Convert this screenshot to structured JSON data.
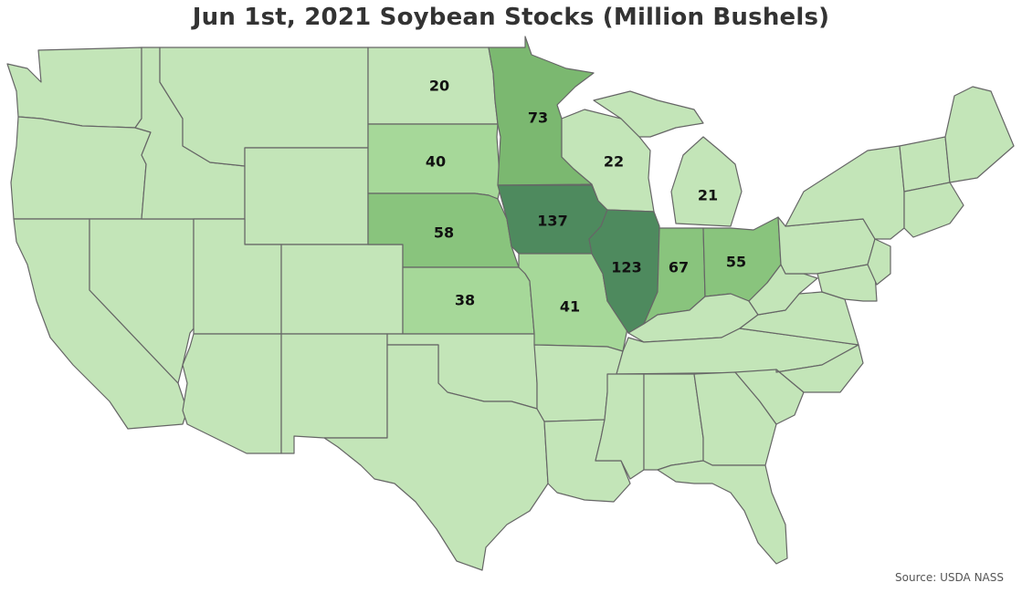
{
  "title": "Jun 1st, 2021 Soybean Stocks (Million Bushels)",
  "source": "Source: USDA NASS",
  "colors": {
    "base": "#c3e5b8",
    "low": "#a6d899",
    "mid": "#89c47d",
    "high": "#7bb870",
    "top": "#4e8a5e",
    "outline": "#666666"
  },
  "states": {
    "ND": "20",
    "SD": "40",
    "NE": "58",
    "KS": "38",
    "MN": "73",
    "IA": "137",
    "MO": "41",
    "WI": "22",
    "IL": "123",
    "MI": "21",
    "IN": "67",
    "OH": "55"
  }
}
